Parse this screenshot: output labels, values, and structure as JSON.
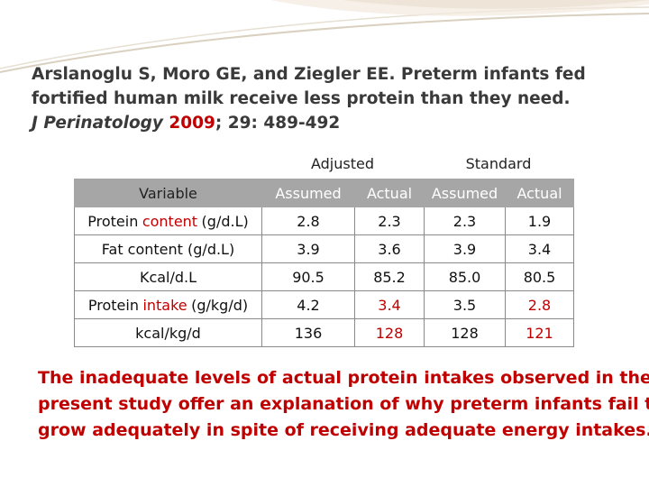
{
  "citation": {
    "line1": "Arslanoglu S, Moro GE, and Ziegler EE. Preterm infants fed",
    "line2": "fortified human milk receive less protein than they need.",
    "journal": "J Perinatology",
    "year": "2009",
    "rest": "; 29: 489-492"
  },
  "table": {
    "groups": [
      "Adjusted",
      "Standard"
    ],
    "columns": [
      "Variable",
      "Assumed",
      "Actual",
      "Assumed",
      "Actual"
    ],
    "highlight_color": "#c00000",
    "rows": [
      {
        "label": [
          "Protein",
          "content",
          "(g/d.L)"
        ],
        "label_highlight": 1,
        "cells": [
          "2.8",
          "2.3",
          "2.3",
          "1.9"
        ],
        "highlight": [
          false,
          false,
          false,
          false
        ]
      },
      {
        "label": [
          "Fat content (g/d.L)"
        ],
        "label_highlight": null,
        "cells": [
          "3.9",
          "3.6",
          "3.9",
          "3.4"
        ],
        "highlight": [
          false,
          false,
          false,
          false
        ]
      },
      {
        "label": [
          "Kcal/d.L"
        ],
        "label_highlight": null,
        "cells": [
          "90.5",
          "85.2",
          "85.0",
          "80.5"
        ],
        "highlight": [
          false,
          false,
          false,
          false
        ]
      },
      {
        "label": [
          "Protein",
          "intake",
          "(g/kg/d)"
        ],
        "label_highlight": 1,
        "cells": [
          "4.2",
          "3.4",
          "3.5",
          "2.8"
        ],
        "highlight": [
          false,
          true,
          false,
          true
        ]
      },
      {
        "label": [
          "kcal/kg/d"
        ],
        "label_highlight": null,
        "cells": [
          "136",
          "128",
          "128",
          "121"
        ],
        "highlight": [
          false,
          true,
          false,
          true
        ]
      }
    ]
  },
  "conclusion": [
    "The inadequate levels of actual protein intakes observed in the",
    "present study offer an explanation of why preterm infants fail to",
    "grow adequately in spite of receiving adequate energy intakes."
  ]
}
